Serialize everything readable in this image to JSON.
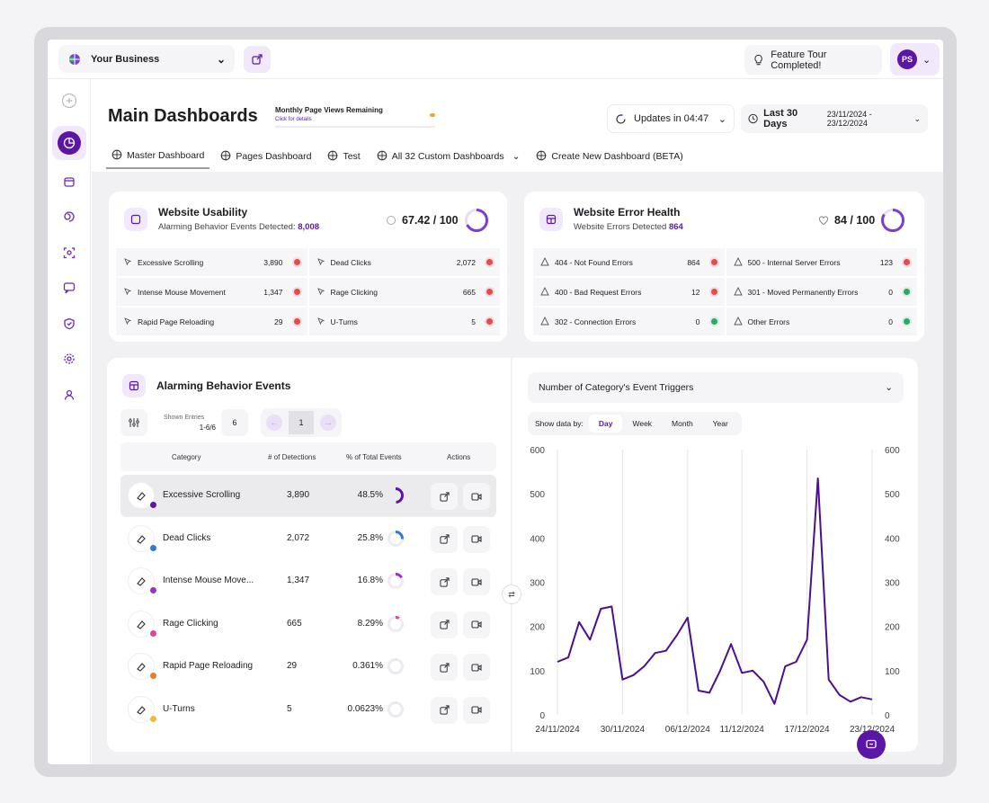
{
  "topbar": {
    "business_name": "Your Business",
    "tour_label": "Feature Tour Completed!",
    "avatar_initials": "PS"
  },
  "header": {
    "title": "Main Dashboards",
    "page_views_label": "Monthly Page Views Remaining",
    "page_views_link": "Click for details",
    "updates_label": "Updates in 04:47",
    "range_label": "Last 30 Days",
    "range_dates": "23/11/2024 - 23/12/2024"
  },
  "tabs": [
    {
      "label": "Master Dashboard",
      "icon": "dashboard-icon",
      "chevron": false
    },
    {
      "label": "Pages Dashboard",
      "icon": "video-icon",
      "chevron": false
    },
    {
      "label": "Test",
      "icon": "globe-icon",
      "chevron": false
    },
    {
      "label": "All 32 Custom Dashboards",
      "icon": "globe-icon",
      "chevron": true
    },
    {
      "label": "Create New Dashboard (BETA)",
      "icon": "plus-circle-icon",
      "chevron": false
    }
  ],
  "usability": {
    "title": "Website Usability",
    "subtitle": "Alarming Behavior Events Detected:",
    "count": "8,008",
    "score": "67.42 / 100",
    "score_fraction": 0.6742,
    "metrics": [
      {
        "name": "Excessive Scrolling",
        "value": "3,890",
        "status": "red"
      },
      {
        "name": "Dead Clicks",
        "value": "2,072",
        "status": "red"
      },
      {
        "name": "Intense Mouse Movement",
        "value": "1,347",
        "status": "red"
      },
      {
        "name": "Rage Clicking",
        "value": "665",
        "status": "red"
      },
      {
        "name": "Rapid Page Reloading",
        "value": "29",
        "status": "red"
      },
      {
        "name": "U-Turns",
        "value": "5",
        "status": "red"
      }
    ]
  },
  "errors": {
    "title": "Website Error Health",
    "subtitle": "Website Errors Detected",
    "count": "864",
    "score": "84 / 100",
    "score_fraction": 0.84,
    "metrics": [
      {
        "name": "404 - Not Found Errors",
        "value": "864",
        "status": "red"
      },
      {
        "name": "500 - Internal Server Errors",
        "value": "123",
        "status": "red"
      },
      {
        "name": "400 - Bad Request Errors",
        "value": "12",
        "status": "red"
      },
      {
        "name": "301 - Moved Permanently Errors",
        "value": "0",
        "status": "green"
      },
      {
        "name": "302 - Connection Errors",
        "value": "0",
        "status": "green"
      },
      {
        "name": "Other Errors",
        "value": "0",
        "status": "green"
      }
    ]
  },
  "events": {
    "title": "Alarming Behavior Events",
    "shown_label": "Shown Entries",
    "shown_range": "1-6/6",
    "page_size": "6",
    "page": "1",
    "columns": [
      "Category",
      "# of Detections",
      "% of Total Events",
      "Actions"
    ],
    "rows": [
      {
        "name": "Excessive Scrolling",
        "detections": "3,890",
        "percent": "48.5%",
        "fraction": 0.485,
        "color": "#5b16a8"
      },
      {
        "name": "Dead Clicks",
        "detections": "2,072",
        "percent": "25.8%",
        "fraction": 0.258,
        "color": "#2f7ad6"
      },
      {
        "name": "Intense Mouse Move...",
        "detections": "1,347",
        "percent": "16.8%",
        "fraction": 0.168,
        "color": "#9b2fd6"
      },
      {
        "name": "Rage Clicking",
        "detections": "665",
        "percent": "8.29%",
        "fraction": 0.0829,
        "color": "#e0439b"
      },
      {
        "name": "Rapid Page Reloading",
        "detections": "29",
        "percent": "0.361%",
        "fraction": 0.00361,
        "color": "#f07b1e"
      },
      {
        "name": "U-Turns",
        "detections": "5",
        "percent": "0.0623%",
        "fraction": 0.000623,
        "color": "#f3b73a"
      }
    ]
  },
  "chart_panel": {
    "dropdown_label": "Number of Category's Event Triggers",
    "show_by_label": "Show data by:",
    "periods": [
      "Day",
      "Week",
      "Month",
      "Year"
    ],
    "active_period": "Day"
  },
  "chart_data": {
    "type": "line",
    "x_ticks": [
      "24/11/2024",
      "30/11/2024",
      "06/12/2024",
      "11/12/2024",
      "17/12/2024",
      "23/12/2024"
    ],
    "y_ticks": [
      "0",
      "100",
      "200",
      "300",
      "400",
      "500",
      "600"
    ],
    "ylim": [
      0,
      600
    ],
    "color": "#4b0f90",
    "grid_x": true,
    "y_axis_both_sides": true,
    "series": [
      {
        "values": [
          120,
          130,
          210,
          170,
          240,
          245,
          80,
          90,
          110,
          140,
          145,
          180,
          220,
          55,
          50,
          100,
          160,
          95,
          100,
          75,
          25,
          110,
          120,
          170,
          535,
          80,
          45,
          30,
          40,
          35
        ]
      }
    ]
  },
  "colors": {
    "accent": "#5b16a8",
    "accent_light": "#f1e9fb",
    "status_red": "#e84a4a",
    "status_green": "#2fa865"
  }
}
